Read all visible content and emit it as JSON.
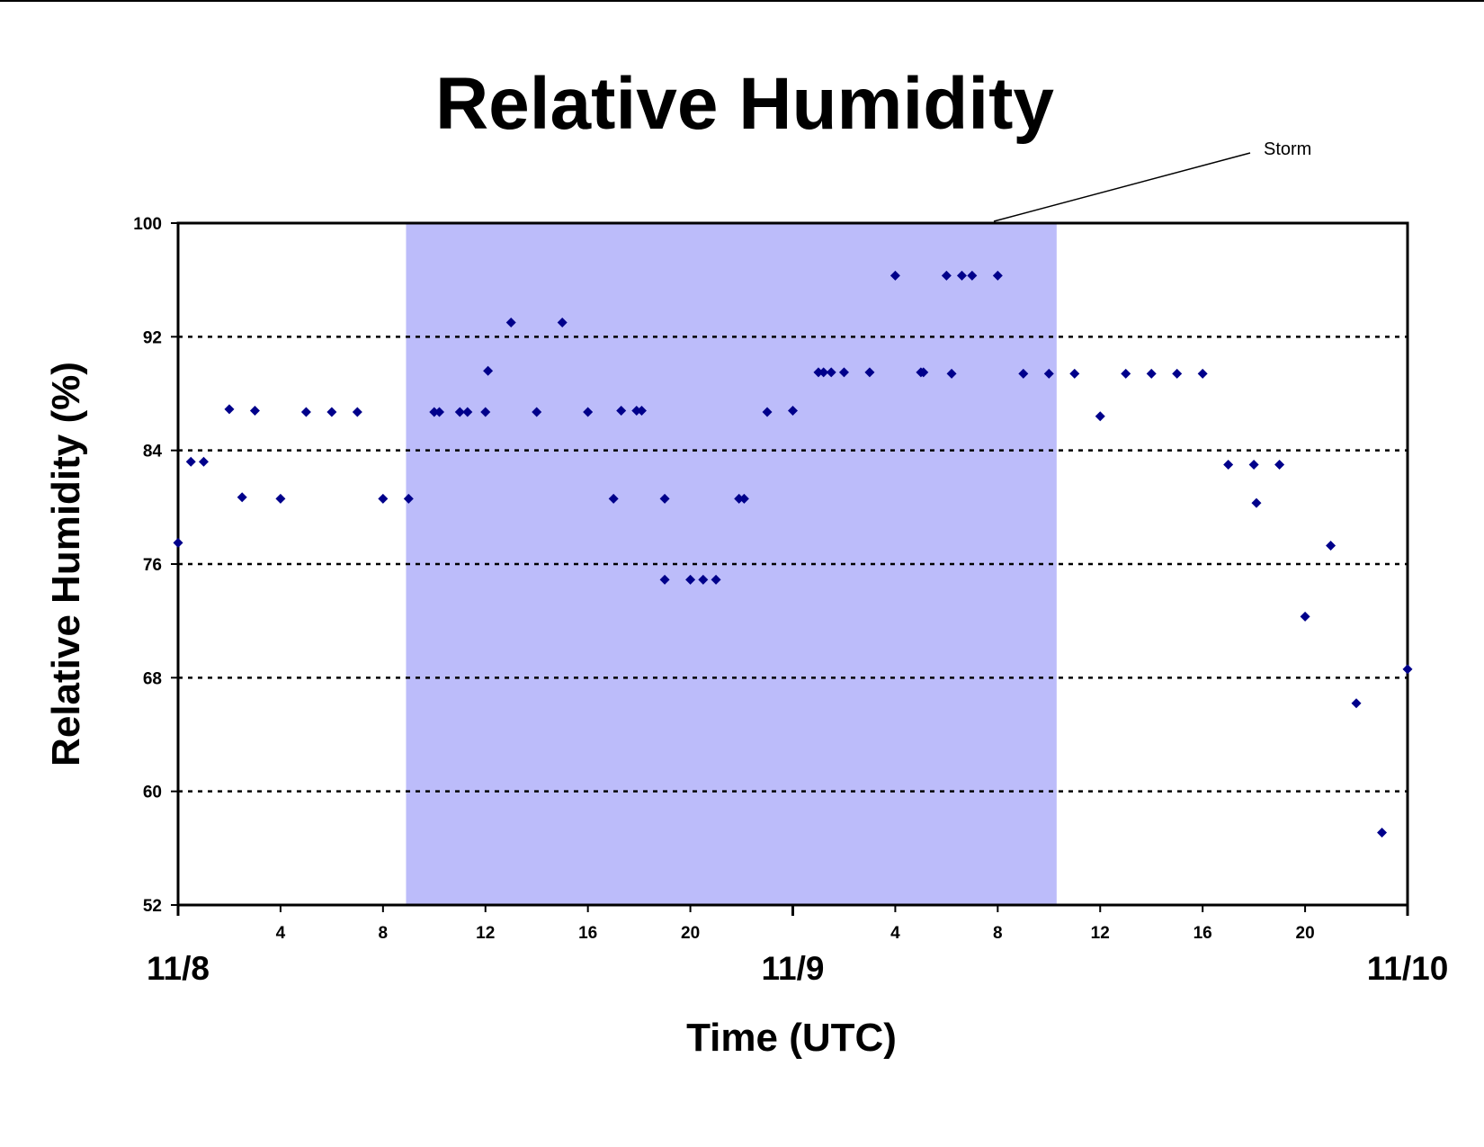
{
  "chart_data": {
    "type": "scatter",
    "title": "Relative Humidity",
    "xlabel": "Time (UTC)",
    "ylabel": "Relative Humidity (%)",
    "ylim": [
      52,
      100
    ],
    "yticks": [
      "100",
      "92",
      "84",
      "76",
      "68",
      "60",
      "52"
    ],
    "xlim_hours": [
      0,
      48
    ],
    "xticks": [
      {
        "hour": 4,
        "label": "4"
      },
      {
        "hour": 8,
        "label": "8"
      },
      {
        "hour": 12,
        "label": "12"
      },
      {
        "hour": 16,
        "label": "16"
      },
      {
        "hour": 20,
        "label": "20"
      },
      {
        "hour": 28,
        "label": "4"
      },
      {
        "hour": 32,
        "label": "8"
      },
      {
        "hour": 36,
        "label": "12"
      },
      {
        "hour": 40,
        "label": "16"
      },
      {
        "hour": 44,
        "label": "20"
      }
    ],
    "day_labels": [
      {
        "hour": 0,
        "label": "11/8"
      },
      {
        "hour": 24,
        "label": "11/9"
      },
      {
        "hour": 48,
        "label": "11/10"
      }
    ],
    "grid": "horizontal dotted",
    "legend": "none",
    "marker_color": "#00008b",
    "shade_color": "#bcbcfa",
    "storm_period_hours": [
      8.9,
      34.3
    ],
    "annotation": {
      "text": "Storm"
    },
    "points": [
      [
        0,
        77.5
      ],
      [
        0.5,
        83.2
      ],
      [
        1,
        83.2
      ],
      [
        2,
        86.9
      ],
      [
        2.5,
        80.7
      ],
      [
        3,
        86.8
      ],
      [
        4,
        80.6
      ],
      [
        5,
        86.7
      ],
      [
        6,
        86.7
      ],
      [
        7,
        86.7
      ],
      [
        8,
        80.6
      ],
      [
        9,
        80.6
      ],
      [
        10,
        86.7
      ],
      [
        10.2,
        86.7
      ],
      [
        11,
        86.7
      ],
      [
        11.3,
        86.7
      ],
      [
        12,
        86.7
      ],
      [
        12.1,
        89.6
      ],
      [
        13,
        93.0
      ],
      [
        14,
        86.7
      ],
      [
        15,
        93.0
      ],
      [
        16,
        86.7
      ],
      [
        17,
        80.6
      ],
      [
        17.3,
        86.8
      ],
      [
        17.9,
        86.8
      ],
      [
        18.1,
        86.8
      ],
      [
        19,
        80.6
      ],
      [
        19,
        74.9
      ],
      [
        20,
        74.9
      ],
      [
        20.5,
        74.9
      ],
      [
        21,
        74.9
      ],
      [
        21.9,
        80.6
      ],
      [
        22.1,
        80.6
      ],
      [
        23,
        86.7
      ],
      [
        24,
        86.8
      ],
      [
        25,
        89.5
      ],
      [
        25.2,
        89.5
      ],
      [
        25.5,
        89.5
      ],
      [
        26,
        89.5
      ],
      [
        27,
        89.5
      ],
      [
        28,
        96.3
      ],
      [
        29,
        89.5
      ],
      [
        29.1,
        89.5
      ],
      [
        30,
        96.3
      ],
      [
        30.2,
        89.4
      ],
      [
        30.6,
        96.3
      ],
      [
        31,
        96.3
      ],
      [
        32,
        96.3
      ],
      [
        33,
        89.4
      ],
      [
        34,
        89.4
      ],
      [
        35,
        89.4
      ],
      [
        36,
        86.4
      ],
      [
        37,
        89.4
      ],
      [
        38,
        89.4
      ],
      [
        39,
        89.4
      ],
      [
        40,
        89.4
      ],
      [
        41,
        83.0
      ],
      [
        42,
        83.0
      ],
      [
        42.1,
        80.3
      ],
      [
        43,
        83.0
      ],
      [
        44,
        72.3
      ],
      [
        45,
        77.3
      ],
      [
        46,
        66.2
      ],
      [
        47,
        57.1
      ],
      [
        48,
        68.6
      ]
    ]
  }
}
